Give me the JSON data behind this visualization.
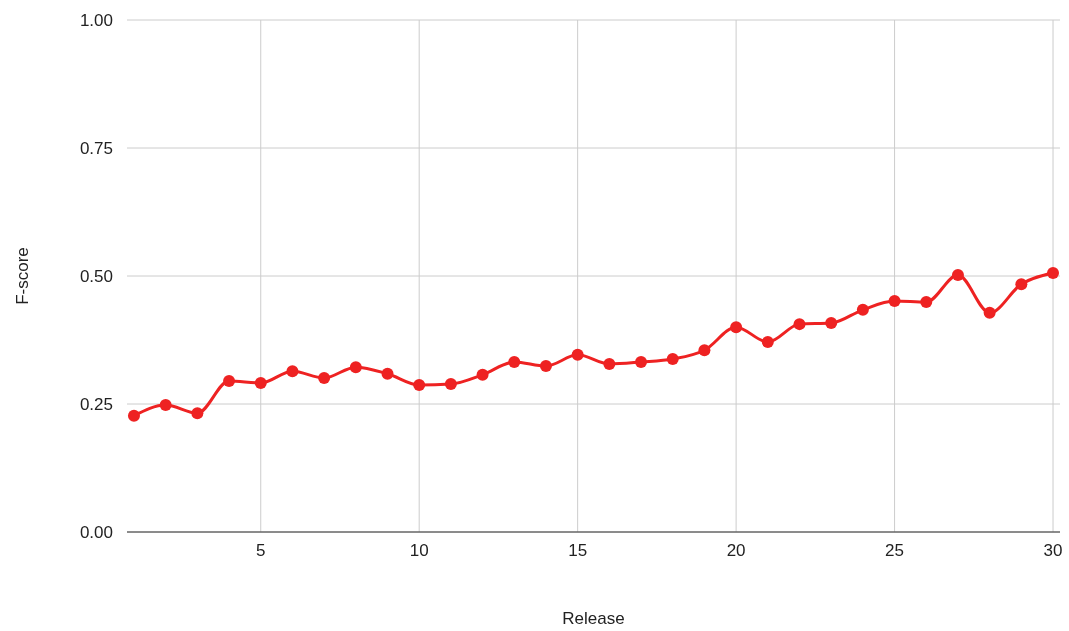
{
  "chart_data": {
    "type": "line",
    "xlabel": "Release",
    "ylabel": "F-score",
    "x": [
      1,
      2,
      3,
      4,
      5,
      6,
      7,
      8,
      9,
      10,
      11,
      12,
      13,
      14,
      15,
      16,
      17,
      18,
      19,
      20,
      21,
      22,
      23,
      24,
      25,
      26,
      27,
      28,
      29,
      30
    ],
    "series": [
      {
        "color": "#ee2222",
        "values": [
          0.227,
          0.248,
          0.232,
          0.295,
          0.291,
          0.314,
          0.301,
          0.322,
          0.309,
          0.287,
          0.289,
          0.307,
          0.332,
          0.324,
          0.346,
          0.328,
          0.332,
          0.338,
          0.355,
          0.4,
          0.371,
          0.406,
          0.408,
          0.434,
          0.451,
          0.449,
          0.502,
          0.428,
          0.484,
          0.506
        ]
      }
    ],
    "xlim": [
      0.78,
      30.22
    ],
    "xticks": [
      5,
      10,
      15,
      20,
      25,
      30
    ],
    "ylim": [
      0,
      1
    ],
    "yticks": [
      {
        "value": 0,
        "label": "0.00"
      },
      {
        "value": 0.25,
        "label": "0.25"
      },
      {
        "value": 0.5,
        "label": "0.50"
      },
      {
        "value": 0.75,
        "label": "0.75"
      },
      {
        "value": 1,
        "label": "1.00"
      }
    ],
    "grid": true,
    "marker": "circle",
    "line_style": "solid"
  }
}
